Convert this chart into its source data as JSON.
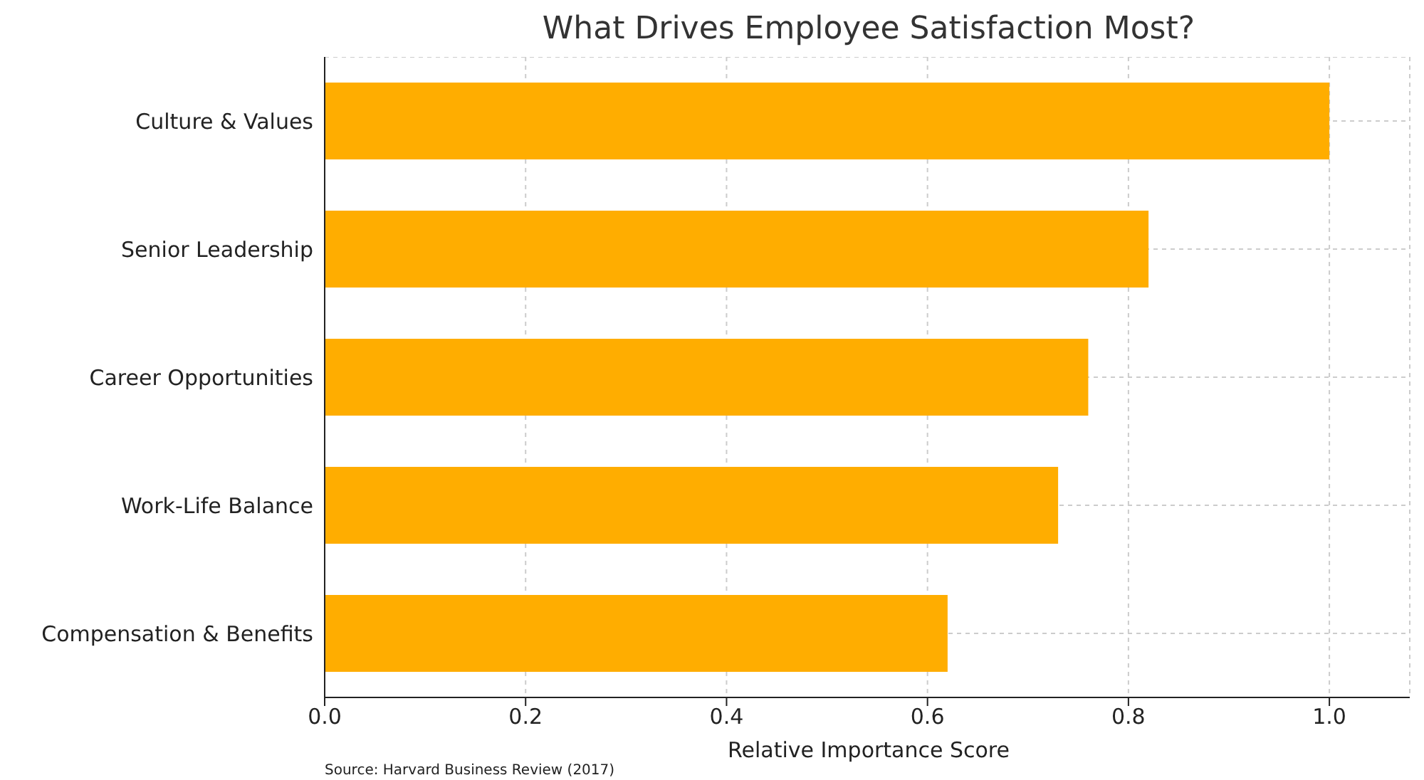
{
  "chart_data": {
    "type": "bar",
    "orientation": "horizontal",
    "title": "What Drives Employee Satisfaction Most?",
    "xlabel": "Relative Importance Score",
    "categories": [
      "Culture & Values",
      "Senior Leadership",
      "Career Opportunities",
      "Work-Life Balance",
      "Compensation & Benefits"
    ],
    "values": [
      1.0,
      0.82,
      0.76,
      0.73,
      0.62
    ],
    "color": "#ffad00",
    "xlim": [
      0,
      1.08
    ],
    "xticks": [
      {
        "value": 0,
        "label": "0.0"
      },
      {
        "value": 0.2,
        "label": "0.2"
      },
      {
        "value": 0.4,
        "label": "0.4"
      },
      {
        "value": 0.6,
        "label": "0.6"
      },
      {
        "value": 0.8,
        "label": "0.8"
      },
      {
        "value": 1.0,
        "label": "1.0"
      }
    ],
    "grid": true,
    "annotations": [
      "Source: Harvard Business Review (2017)"
    ]
  }
}
